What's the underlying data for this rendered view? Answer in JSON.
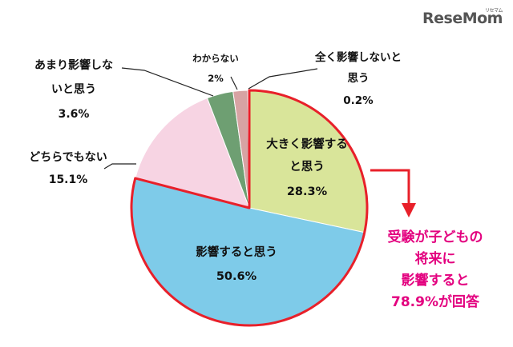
{
  "brand": {
    "logo_text": "ReseMom",
    "logo_sup": "リセマム"
  },
  "chart_data": {
    "type": "pie",
    "slices": [
      {
        "label": "大きく影響すると思う",
        "value": 28.3,
        "pct_text": "28.3%",
        "color": "#d9e59a"
      },
      {
        "label": "影響すると思う",
        "value": 50.6,
        "pct_text": "50.6%",
        "color": "#7ecbe9"
      },
      {
        "label": "どちらでもない",
        "value": 15.1,
        "pct_text": "15.1%",
        "color": "#f7d4e3"
      },
      {
        "label": "あまり影響しないと思う",
        "value": 3.6,
        "pct_text": "3.6%",
        "color": "#6e9f72"
      },
      {
        "label": "わからない",
        "value": 2.0,
        "pct_text": "2%",
        "color": "#d7a3a3"
      },
      {
        "label": "全く影響しないと思う",
        "value": 0.2,
        "pct_text": "0.2%",
        "color": "#f0e58e"
      }
    ],
    "labels": {
      "s0": [
        "大きく影響する",
        "と思う",
        "28.3%"
      ],
      "s1": [
        "影響すると思う",
        "50.6%"
      ],
      "s2": [
        "どちらでもない",
        "15.1%"
      ],
      "s3": [
        "あまり影響しな",
        "いと思う",
        "3.6%"
      ],
      "s4": [
        "わからない",
        "2%"
      ],
      "s5": [
        "全く影響しないと",
        "思う",
        "0.2%"
      ]
    }
  },
  "callout": {
    "lines": [
      "受験が子どもの",
      "将来に",
      "影響すると",
      "78.9%が回答"
    ],
    "color": "#e3007f"
  }
}
